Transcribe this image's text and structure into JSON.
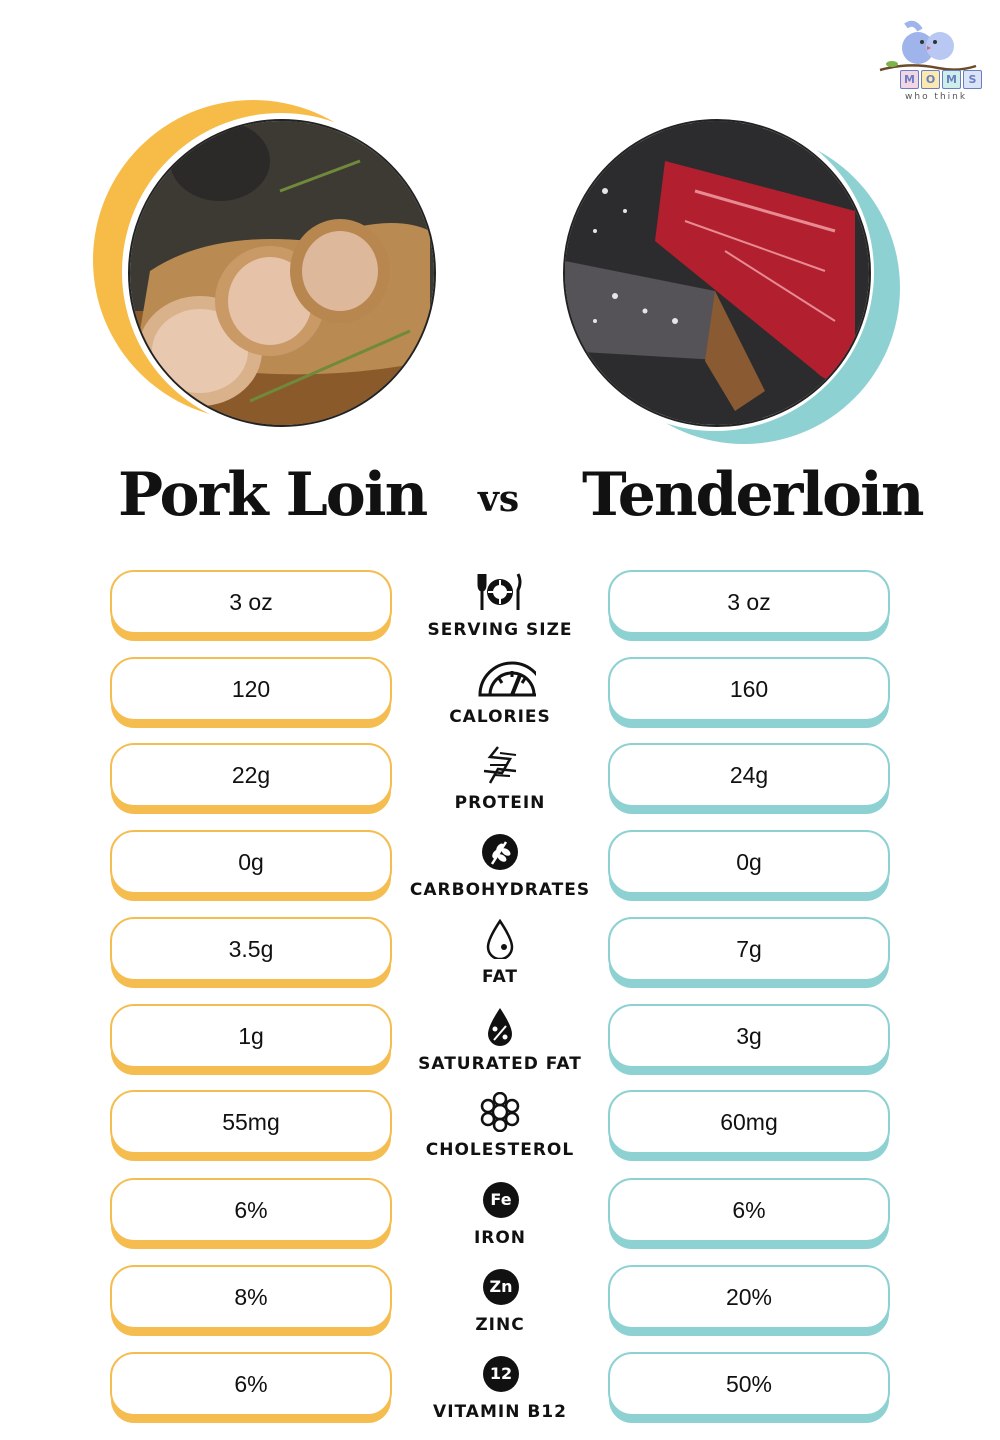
{
  "brand": {
    "logo_letters": [
      "M",
      "O",
      "M",
      "S"
    ],
    "tagline": "who think"
  },
  "left": {
    "title": "Pork Loin",
    "accent": "#f5bd4f",
    "photo": "pork-loin-roast"
  },
  "right": {
    "title": "Tenderloin",
    "accent": "#8ed1d3",
    "photo": "raw-tenderloin-steak"
  },
  "vs_label": "vs",
  "rows": [
    {
      "label": "SERVING SIZE",
      "icon": "utensils-plate-icon",
      "left": "3 oz",
      "right": "3 oz"
    },
    {
      "label": "CALORIES",
      "icon": "gauge-icon",
      "left": "120",
      "right": "160"
    },
    {
      "label": "PROTEIN",
      "icon": "dna-icon",
      "left": "22g",
      "right": "24g"
    },
    {
      "label": "CARBOHYDRATES",
      "icon": "grain-icon",
      "left": "0g",
      "right": "0g"
    },
    {
      "label": "FAT",
      "icon": "drop-icon",
      "left": "3.5g",
      "right": "7g"
    },
    {
      "label": "SATURATED FAT",
      "icon": "percent-drop-icon",
      "left": "1g",
      "right": "3g"
    },
    {
      "label": "CHOLESTEROL",
      "icon": "molecule-icon",
      "left": "55mg",
      "right": "60mg"
    },
    {
      "label": "IRON",
      "icon": "iron-chip-icon",
      "chip": "Fe",
      "left": "6%",
      "right": "6%"
    },
    {
      "label": "ZINC",
      "icon": "zinc-chip-icon",
      "chip": "Zn",
      "left": "8%",
      "right": "20%"
    },
    {
      "label": "VITAMIN B12",
      "icon": "b12-chip-icon",
      "chip": "12",
      "left": "6%",
      "right": "50%"
    }
  ]
}
